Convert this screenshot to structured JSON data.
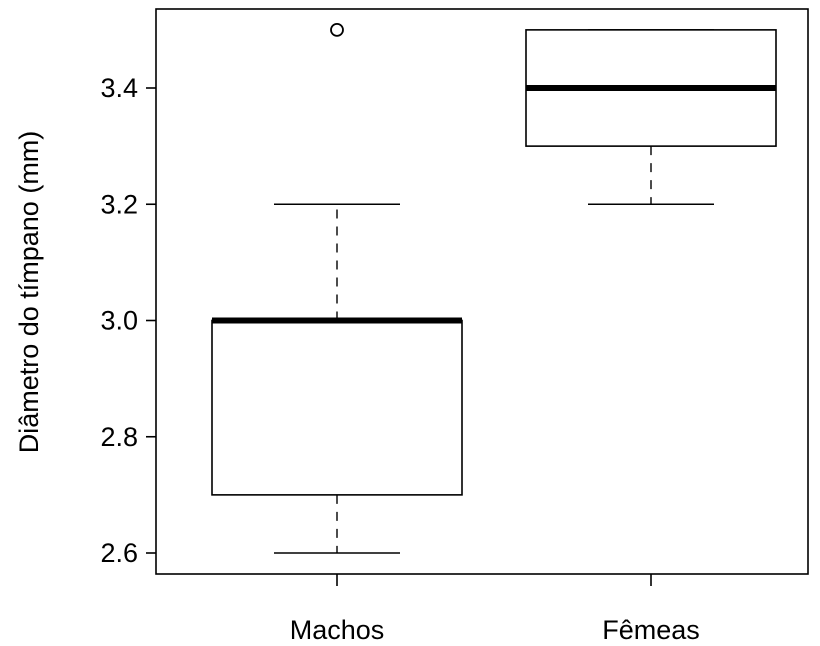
{
  "chart_data": {
    "type": "boxplot",
    "ylabel": "Diâmetro do tímpano (mm)",
    "xlabel": "",
    "ylim": [
      2.57,
      3.54
    ],
    "yticks": [
      2.6,
      2.8,
      3.0,
      3.2,
      3.4
    ],
    "ytick_labels": [
      "2.6",
      "2.8",
      "3.0",
      "3.2",
      "3.4"
    ],
    "categories": [
      "Machos",
      "Fêmeas"
    ],
    "boxes": [
      {
        "label": "Machos",
        "whisker_low": 2.6,
        "q1": 2.7,
        "median": 3.0,
        "q3": 3.0,
        "whisker_high": 3.2,
        "outliers": [
          3.5
        ]
      },
      {
        "label": "Fêmeas",
        "whisker_low": 3.2,
        "q1": 3.3,
        "median": 3.4,
        "q3": 3.5,
        "whisker_high": 3.5,
        "outliers": []
      }
    ],
    "grid": false,
    "legend": "none"
  }
}
